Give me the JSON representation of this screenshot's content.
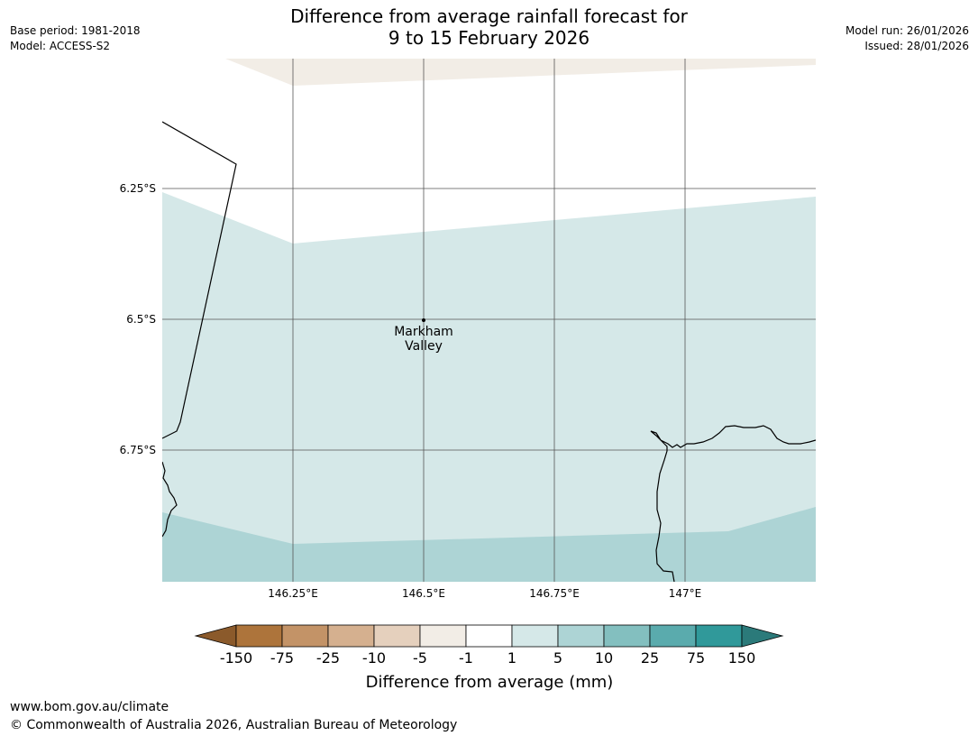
{
  "title": {
    "line1": "Difference from average rainfall forecast for",
    "line2": "9 to 15 February 2026"
  },
  "meta_left": {
    "base_period": "Base period: 1981-2018",
    "model": "Model: ACCESS-S2"
  },
  "meta_right": {
    "model_run": "Model run: 26/01/2026",
    "issued": "Issued: 28/01/2026"
  },
  "map": {
    "lat_labels": [
      "6.25°S",
      "6.5°S",
      "6.75°S"
    ],
    "lon_labels": [
      "146.25°E",
      "146.5°E",
      "146.75°E",
      "147°E"
    ],
    "place": {
      "line1": "Markham",
      "line2": "Valley"
    },
    "colors": {
      "band_minus5_minus1": "#f2ede6",
      "band_minus1_1": "#ffffff",
      "band_1_5": "#d5e8e8",
      "band_5_10": "#add4d5",
      "coastline": "#000000",
      "gridline": "#555555"
    }
  },
  "colorbar": {
    "ticks": [
      "-150",
      "-75",
      "-25",
      "-10",
      "-5",
      "-1",
      "1",
      "5",
      "10",
      "25",
      "75",
      "150"
    ],
    "colors": [
      "#8b5a2b",
      "#ad743b",
      "#c39367",
      "#d5b08f",
      "#e5d0bd",
      "#f2ede6",
      "#ffffff",
      "#d5e8e8",
      "#add4d5",
      "#83bfbf",
      "#5aabad",
      "#30999a",
      "#2b7a7a"
    ],
    "label": "Difference from average (mm)"
  },
  "footer": {
    "url": "www.bom.gov.au/climate",
    "copyright": "© Commonwealth of Australia 2026, Australian Bureau of Meteorology"
  }
}
